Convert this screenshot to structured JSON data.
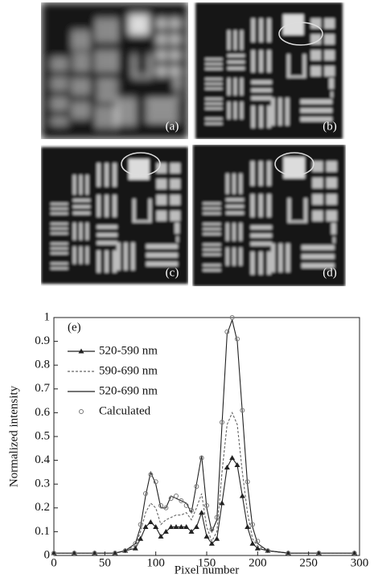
{
  "panels": [
    "(a)",
    "(b)",
    "(c)",
    "(d)"
  ],
  "chart_data": {
    "type": "line",
    "panel_label": "(e)",
    "x_label": "Pixel number",
    "y_label": "Normalized intensity",
    "xlim": [
      0,
      300
    ],
    "xticks": [
      0,
      50,
      100,
      150,
      200,
      250,
      300
    ],
    "ylim": [
      0,
      1
    ],
    "yticks": [
      0,
      0.1,
      0.2,
      0.3,
      0.4,
      0.5,
      0.6,
      0.7,
      0.8,
      0.9,
      1
    ],
    "legend": "upper left",
    "x": [
      0,
      20,
      40,
      60,
      70,
      80,
      85,
      90,
      95,
      100,
      105,
      110,
      115,
      120,
      125,
      130,
      135,
      140,
      145,
      150,
      155,
      160,
      165,
      170,
      175,
      180,
      185,
      190,
      195,
      200,
      210,
      230,
      260,
      295
    ],
    "series": [
      {
        "name": "520-590 nm",
        "color": "#222222",
        "line": "solid",
        "marker": "triangle",
        "values": [
          0.01,
          0.01,
          0.01,
          0.01,
          0.02,
          0.03,
          0.07,
          0.12,
          0.14,
          0.12,
          0.08,
          0.1,
          0.12,
          0.12,
          0.12,
          0.12,
          0.1,
          0.12,
          0.18,
          0.08,
          0.05,
          0.07,
          0.22,
          0.37,
          0.41,
          0.38,
          0.25,
          0.12,
          0.05,
          0.03,
          0.02,
          0.01,
          0.01,
          0.01
        ]
      },
      {
        "name": "590-690 nm",
        "color": "#666666",
        "line": "dashed",
        "marker": "none",
        "values": [
          0.01,
          0.01,
          0.01,
          0.01,
          0.02,
          0.04,
          0.1,
          0.18,
          0.22,
          0.2,
          0.13,
          0.15,
          0.16,
          0.17,
          0.17,
          0.18,
          0.15,
          0.2,
          0.26,
          0.12,
          0.06,
          0.1,
          0.35,
          0.55,
          0.6,
          0.55,
          0.35,
          0.18,
          0.07,
          0.04,
          0.02,
          0.01,
          0.01,
          0.01
        ]
      },
      {
        "name": "520-690 nm",
        "color": "#222222",
        "line": "solid",
        "marker": "none",
        "values": [
          0.01,
          0.01,
          0.01,
          0.01,
          0.02,
          0.05,
          0.12,
          0.25,
          0.35,
          0.3,
          0.2,
          0.2,
          0.25,
          0.24,
          0.23,
          0.22,
          0.18,
          0.3,
          0.42,
          0.2,
          0.1,
          0.15,
          0.55,
          0.93,
          0.99,
          0.9,
          0.6,
          0.3,
          0.12,
          0.05,
          0.02,
          0.01,
          0.01,
          0.01
        ]
      },
      {
        "name": "Calculated",
        "color": "#777777",
        "line": "none",
        "marker": "circle",
        "values": [
          0.01,
          0.01,
          0.01,
          0.01,
          0.02,
          0.05,
          0.13,
          0.26,
          0.34,
          0.31,
          0.21,
          0.2,
          0.24,
          0.25,
          0.23,
          0.21,
          0.19,
          0.29,
          0.41,
          0.21,
          0.11,
          0.16,
          0.56,
          0.94,
          1.0,
          0.91,
          0.61,
          0.31,
          0.13,
          0.06,
          0.02,
          0.01,
          0.01,
          0.01
        ]
      }
    ]
  }
}
